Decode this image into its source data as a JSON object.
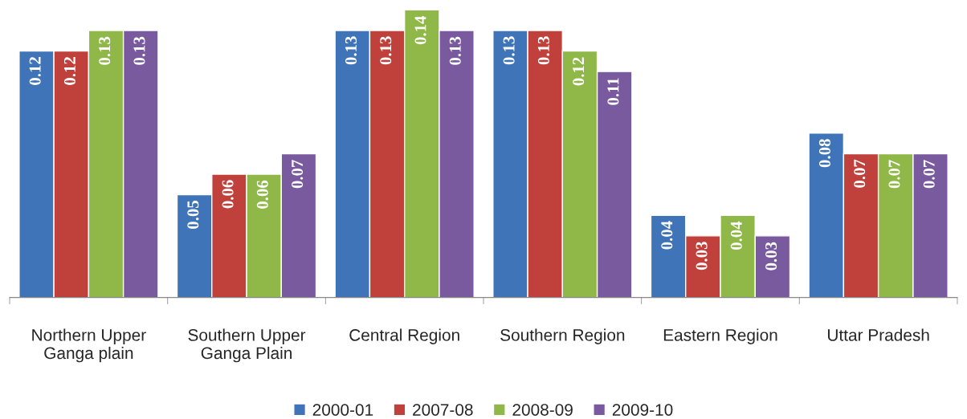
{
  "chart_data": {
    "type": "bar",
    "categories": [
      "Northern Upper\nGanga plain",
      "Southern Upper\nGanga Plain",
      "Central Region",
      "Southern Region",
      "Eastern Region",
      "Uttar Pradesh"
    ],
    "series": [
      {
        "name": "2000-01",
        "color": "#3f74b8",
        "values": [
          0.12,
          0.05,
          0.13,
          0.13,
          0.04,
          0.08
        ]
      },
      {
        "name": "2007-08",
        "color": "#c0403c",
        "values": [
          0.12,
          0.06,
          0.13,
          0.13,
          0.03,
          0.07
        ]
      },
      {
        "name": "2008-09",
        "color": "#90b849",
        "values": [
          0.13,
          0.06,
          0.14,
          0.12,
          0.04,
          0.07
        ]
      },
      {
        "name": "2009-10",
        "color": "#7a5a9e",
        "values": [
          0.13,
          0.07,
          0.13,
          0.11,
          0.03,
          0.07
        ]
      }
    ],
    "data_labels": true,
    "grid": false,
    "legend": "bottom"
  }
}
